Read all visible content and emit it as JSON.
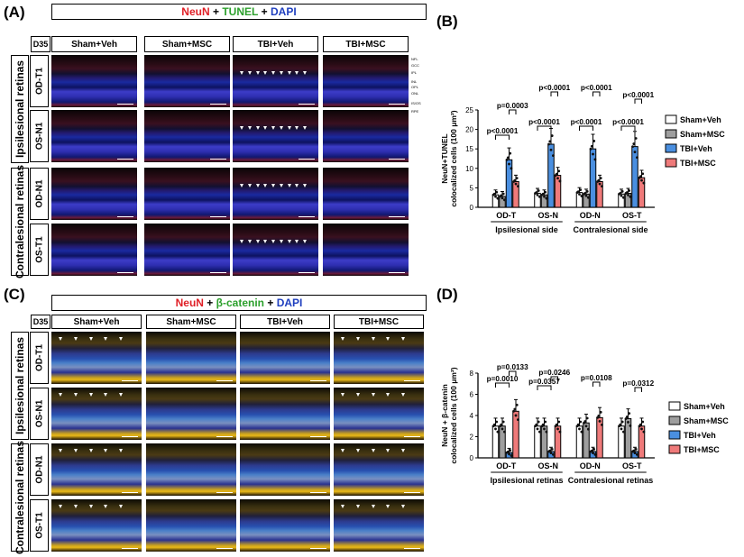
{
  "panels": {
    "A": {
      "label": "(A)",
      "title_parts": [
        {
          "text": "NeuN",
          "color": "#e01f26"
        },
        {
          "text": " + ",
          "color": "#000000"
        },
        {
          "text": "TUNEL",
          "color": "#2ca02c"
        },
        {
          "text": " + ",
          "color": "#000000"
        },
        {
          "text": "DAPI",
          "color": "#1f3fbf"
        }
      ],
      "day": "D35",
      "columns": [
        "Sham+Veh",
        "Sham+MSC",
        "TBI+Veh",
        "TBI+MSC"
      ],
      "groups": [
        "Ipsilesional retinas",
        "Contralesional retinas"
      ],
      "rows": [
        "OD-T1",
        "OS-N1",
        "OD-N1",
        "OS-T1"
      ],
      "layer_labels": [
        "NFL",
        "GCC",
        "IPL",
        "INL",
        "OPL",
        "ONL",
        "IS/OS",
        "RPE"
      ]
    },
    "C": {
      "label": "(C)",
      "title_parts": [
        {
          "text": "NeuN",
          "color": "#e01f26"
        },
        {
          "text": " + ",
          "color": "#000000"
        },
        {
          "text": "β-catenin",
          "color": "#2ca02c"
        },
        {
          "text": " + ",
          "color": "#000000"
        },
        {
          "text": "DAPI",
          "color": "#1f3fbf"
        }
      ],
      "day": "D35",
      "columns": [
        "Sham+Veh",
        "Sham+MSC",
        "TBI+Veh",
        "TBI+MSC"
      ],
      "groups": [
        "Ipsilesional retinas",
        "Contralesional retinas"
      ],
      "rows": [
        "OD-T1",
        "OS-N1",
        "OD-N1",
        "OS-T1"
      ]
    },
    "B": {
      "label": "(B)"
    },
    "D": {
      "label": "(D)"
    }
  },
  "legend": [
    {
      "name": "Sham+Veh",
      "color": "#ffffff"
    },
    {
      "name": "Sham+MSC",
      "color": "#9e9e9e"
    },
    {
      "name": "TBI+Veh",
      "color": "#4a8fe0"
    },
    {
      "name": "TBI+MSC",
      "color": "#ef7a7a"
    }
  ],
  "chart_data": [
    {
      "type": "bar",
      "panel": "B",
      "ylabel": "NeuN+TUNEL colocalized cells (100 μm²)",
      "ylabel_lines": [
        "NeuN+TUNEL",
        "colocalized cells (100 μm²)"
      ],
      "ylim": [
        0,
        25
      ],
      "yticks": [
        0,
        5,
        10,
        15,
        20,
        25
      ],
      "categories": [
        "OD-T",
        "OS-N",
        "OD-N",
        "OS-T"
      ],
      "group_labels": [
        "Ipsilesional side",
        "Contralesional side"
      ],
      "series": [
        {
          "name": "Sham+Veh",
          "values": [
            3.2,
            3.6,
            3.8,
            3.4
          ]
        },
        {
          "name": "Sham+MSC",
          "values": [
            2.8,
            3.2,
            3.4,
            3.6
          ]
        },
        {
          "name": "TBI+Veh",
          "values": [
            12.2,
            16.2,
            15.0,
            15.6
          ]
        },
        {
          "name": "TBI+MSC",
          "values": [
            6.6,
            8.2,
            6.6,
            7.6
          ]
        }
      ],
      "annotations": [
        {
          "text": "p<0.0001",
          "category": "OD-T",
          "from": "Sham+Veh",
          "to": "TBI+Veh"
        },
        {
          "text": "p=0.0003",
          "category": "OD-T",
          "from": "TBI+Veh",
          "to": "TBI+MSC"
        },
        {
          "text": "p<0.0001",
          "category": "OS-N",
          "from": "Sham+Veh",
          "to": "TBI+Veh"
        },
        {
          "text": "p<0.0001",
          "category": "OS-N",
          "from": "TBI+Veh",
          "to": "TBI+MSC"
        },
        {
          "text": "p<0.0001",
          "category": "OD-N",
          "from": "Sham+Veh",
          "to": "TBI+Veh"
        },
        {
          "text": "p<0.0001",
          "category": "OD-N",
          "from": "TBI+Veh",
          "to": "TBI+MSC"
        },
        {
          "text": "p<0.0001",
          "category": "OS-T",
          "from": "Sham+Veh",
          "to": "TBI+Veh"
        },
        {
          "text": "p<0.0001",
          "category": "OS-T",
          "from": "TBI+Veh",
          "to": "TBI+MSC"
        }
      ]
    },
    {
      "type": "bar",
      "panel": "D",
      "ylabel": "NeuN + β-catenin colocalized cells (100 μm²)",
      "ylabel_lines": [
        "NeuN + β-catenin",
        "colocalized cells (100 μm²)"
      ],
      "ylim": [
        0,
        8
      ],
      "yticks": [
        0,
        2,
        4,
        6,
        8
      ],
      "categories": [
        "OD-T",
        "OS-N",
        "OD-N",
        "OS-T"
      ],
      "group_labels": [
        "Ipsilesional retinas",
        "Contralesional retinas"
      ],
      "series": [
        {
          "name": "Sham+Veh",
          "values": [
            3.0,
            3.0,
            3.0,
            3.0
          ]
        },
        {
          "name": "Sham+MSC",
          "values": [
            3.0,
            3.0,
            3.3,
            3.7
          ]
        },
        {
          "name": "TBI+Veh",
          "values": [
            0.5,
            0.6,
            0.6,
            0.6
          ]
        },
        {
          "name": "TBI+MSC",
          "values": [
            4.4,
            3.0,
            3.8,
            3.0
          ]
        }
      ],
      "annotations": [
        {
          "text": "p=0.0010",
          "category": "OD-T",
          "from": "Sham+Veh",
          "to": "TBI+Veh"
        },
        {
          "text": "p=0.0133",
          "category": "OD-T",
          "from": "TBI+Veh",
          "to": "TBI+MSC"
        },
        {
          "text": "p=0.0357",
          "category": "OS-N",
          "from": "Sham+Veh",
          "to": "TBI+Veh"
        },
        {
          "text": "p=0.0246",
          "category": "OS-N",
          "from": "TBI+Veh",
          "to": "TBI+MSC"
        },
        {
          "text": "p=0.0108",
          "category": "OD-N",
          "from": "TBI+Veh",
          "to": "TBI+MSC"
        },
        {
          "text": "p=0.0312",
          "category": "OS-T",
          "from": "TBI+Veh",
          "to": "TBI+MSC"
        }
      ]
    }
  ]
}
